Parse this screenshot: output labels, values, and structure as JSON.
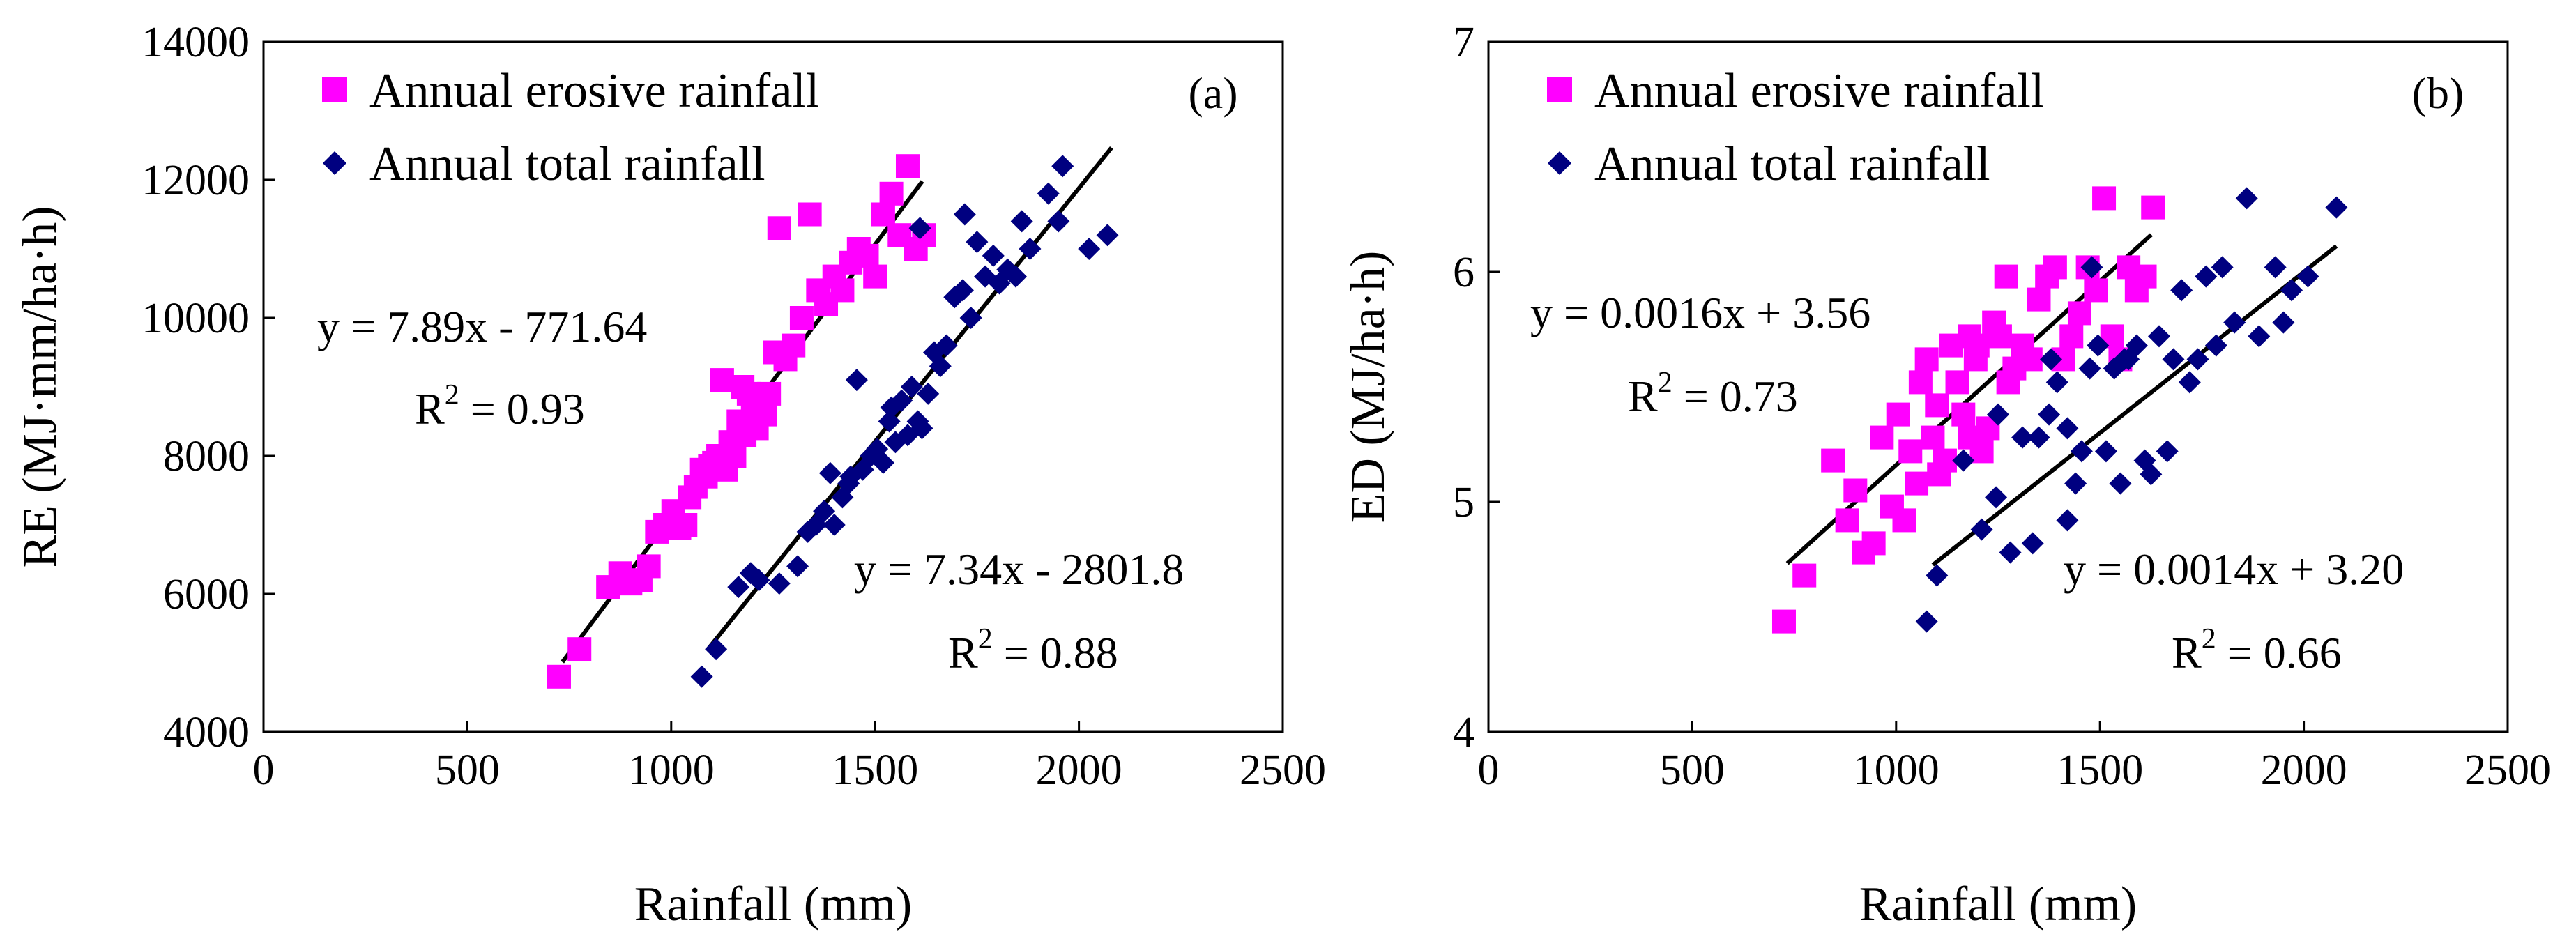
{
  "colors": {
    "erosive": "#ff00ff",
    "total": "#000080",
    "axis": "#000000",
    "fit": "#000000"
  },
  "chart_data": [
    {
      "type": "scatter",
      "panel_label": "(a)",
      "xlabel": "Rainfall (mm)",
      "ylabel": "RE (MJ·mm/ha·h)",
      "xlim": [
        0,
        2500
      ],
      "ylim": [
        4000,
        14000
      ],
      "xticks": [
        0,
        500,
        1000,
        1500,
        2000,
        2500
      ],
      "yticks": [
        4000,
        6000,
        8000,
        10000,
        12000,
        14000
      ],
      "legend": [
        "Annual erosive rainfall",
        "Annual total rainfall"
      ],
      "series": [
        {
          "name": "Annual erosive rainfall",
          "marker": "square",
          "color": "#ff00ff",
          "x": [
            725,
            775,
            845,
            875,
            900,
            925,
            945,
            965,
            985,
            1005,
            1020,
            1035,
            1045,
            1060,
            1075,
            1085,
            1095,
            1105,
            1115,
            1125,
            1135,
            1145,
            1155,
            1165,
            1175,
            1180,
            1190,
            1200,
            1210,
            1220,
            1230,
            1240,
            1255,
            1265,
            1280,
            1300,
            1320,
            1340,
            1360,
            1380,
            1400,
            1420,
            1440,
            1460,
            1480,
            1500,
            1520,
            1540,
            1560,
            1580,
            1600,
            1620
          ],
          "y": [
            4800,
            5200,
            6100,
            6300,
            6150,
            6200,
            6400,
            6900,
            7000,
            7200,
            6950,
            7000,
            7400,
            7550,
            7800,
            7700,
            7850,
            7900,
            8000,
            9100,
            7800,
            8200,
            8000,
            8500,
            9000,
            8300,
            8900,
            8600,
            8400,
            8800,
            8600,
            8900,
            9500,
            11300,
            9400,
            9600,
            10000,
            11500,
            10400,
            10200,
            10600,
            10400,
            10800,
            11000,
            10900,
            10600,
            11500,
            11800,
            11200,
            12200,
            11000,
            11200
          ]
        },
        {
          "name": "Annual total rainfall",
          "marker": "diamond",
          "color": "#000080",
          "x": [
            1075,
            1110,
            1165,
            1195,
            1215,
            1265,
            1310,
            1335,
            1355,
            1375,
            1400,
            1420,
            1435,
            1455,
            1470,
            1490,
            1505,
            1520,
            1535,
            1550,
            1565,
            1580,
            1590,
            1605,
            1615,
            1630,
            1645,
            1660,
            1675,
            1695,
            1715,
            1735,
            1750,
            1770,
            1790,
            1805,
            1825,
            1845,
            1860,
            1880,
            1925,
            1950,
            1960,
            2025,
            2070,
            1720,
            1610,
            1540,
            1440,
            1390
          ],
          "y": [
            4800,
            5200,
            6100,
            6300,
            6200,
            6150,
            6400,
            6900,
            7000,
            7200,
            7000,
            7400,
            7600,
            9100,
            7800,
            8000,
            8100,
            7900,
            8500,
            8200,
            8800,
            8300,
            9000,
            8500,
            8400,
            8900,
            9500,
            9300,
            9600,
            10300,
            10400,
            10000,
            11100,
            10600,
            10900,
            10500,
            10700,
            10600,
            11400,
            11000,
            11800,
            11400,
            12200,
            11000,
            11200,
            11500,
            11300,
            8700,
            7700,
            7750
          ]
        }
      ],
      "fits": [
        {
          "series": "Annual erosive rainfall",
          "slope": 7.89,
          "intercept": -771.64,
          "x_range": [
            733,
            1616
          ],
          "equation": "y = 7.89x - 771.64",
          "r2_label": "R",
          "r2_sup": "2",
          "r2_value": " = 0.93"
        },
        {
          "series": "Annual total rainfall",
          "slope": 7.34,
          "intercept": -2801.8,
          "x_range": [
            1090,
            2080
          ],
          "equation": "y = 7.34x - 2801.8",
          "r2_label": "R",
          "r2_sup": "2",
          "r2_value": " = 0.88"
        }
      ]
    },
    {
      "type": "scatter",
      "panel_label": "(b)",
      "xlabel": "Rainfall (mm)",
      "ylabel": "ED (MJ/ha·h)",
      "xlim": [
        0,
        2500
      ],
      "ylim": [
        4,
        7
      ],
      "xticks": [
        0,
        500,
        1000,
        1500,
        2000,
        2500
      ],
      "yticks": [
        4,
        5,
        6,
        7
      ],
      "legend": [
        "Annual erosive rainfall",
        "Annual total rainfall"
      ],
      "series": [
        {
          "name": "Annual erosive rainfall",
          "marker": "square",
          "color": "#ff00ff",
          "x": [
            725,
            775,
            845,
            880,
            900,
            920,
            945,
            965,
            990,
            1005,
            1020,
            1035,
            1050,
            1060,
            1075,
            1090,
            1105,
            1120,
            1135,
            1150,
            1165,
            1180,
            1195,
            1210,
            1225,
            1240,
            1255,
            1270,
            1290,
            1310,
            1330,
            1350,
            1370,
            1390,
            1410,
            1430,
            1450,
            1470,
            1490,
            1510,
            1530,
            1550,
            1570,
            1590,
            1610,
            1630,
            1200,
            1180,
            1100,
            1275
          ],
          "y": [
            4.48,
            4.68,
            5.18,
            4.92,
            5.05,
            4.78,
            4.82,
            5.28,
            4.98,
            5.38,
            4.92,
            5.22,
            5.08,
            5.52,
            5.62,
            5.28,
            5.12,
            5.18,
            5.68,
            5.52,
            5.38,
            5.72,
            5.62,
            5.22,
            5.32,
            5.78,
            5.72,
            5.98,
            5.58,
            5.68,
            5.62,
            5.88,
            5.98,
            6.02,
            5.62,
            5.72,
            5.82,
            6.02,
            5.92,
            6.32,
            5.72,
            5.62,
            6.02,
            5.92,
            5.98,
            6.28,
            5.68,
            5.28,
            5.42,
            5.52
          ]
        },
        {
          "name": "Annual total rainfall",
          "marker": "diamond",
          "color": "#000080",
          "x": [
            1075,
            1100,
            1165,
            1210,
            1245,
            1280,
            1310,
            1335,
            1350,
            1375,
            1395,
            1420,
            1440,
            1455,
            1475,
            1495,
            1515,
            1535,
            1550,
            1570,
            1590,
            1610,
            1625,
            1645,
            1665,
            1680,
            1700,
            1720,
            1740,
            1760,
            1785,
            1800,
            1830,
            1860,
            1890,
            1930,
            1950,
            1970,
            2010,
            2080,
            1380,
            1480,
            1560,
            1250,
            1420
          ],
          "y": [
            4.48,
            4.68,
            5.18,
            4.88,
            5.02,
            4.78,
            5.28,
            4.82,
            5.28,
            5.38,
            5.52,
            4.92,
            5.08,
            5.22,
            5.58,
            5.68,
            5.22,
            5.58,
            5.08,
            5.62,
            5.68,
            5.18,
            5.12,
            5.72,
            5.22,
            5.62,
            5.92,
            5.52,
            5.62,
            5.98,
            5.68,
            6.02,
            5.78,
            6.32,
            5.72,
            6.02,
            5.78,
            5.92,
            5.98,
            6.28,
            5.62,
            6.02,
            5.62,
            5.38,
            5.32
          ]
        }
      ],
      "fits": [
        {
          "series": "Annual erosive rainfall",
          "slope": 0.0016,
          "intercept": 3.56,
          "x_range": [
            733,
            1626
          ],
          "equation": "y = 0.0016x + 3.56",
          "r2_label": "R",
          "r2_sup": "2",
          "r2_value": " = 0.73"
        },
        {
          "series": "Annual total rainfall",
          "slope": 0.0014,
          "intercept": 3.2,
          "x_range": [
            1090,
            2080
          ],
          "equation": "y = 0.0014x + 3.20",
          "r2_label": "R",
          "r2_sup": "2",
          "r2_value": " = 0.66"
        }
      ]
    }
  ]
}
